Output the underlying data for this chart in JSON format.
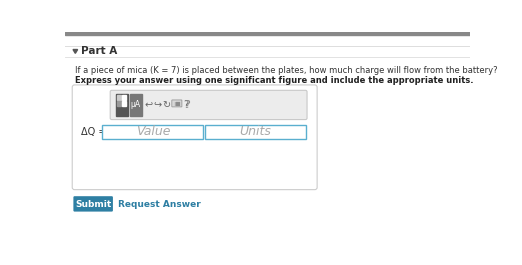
{
  "bg_top_bar": "#888888",
  "bg_white": "#ffffff",
  "bg_light": "#f0f0f0",
  "separator_color": "#dddddd",
  "part_a_label": "Part A",
  "question": "If a piece of mica (K = 7) is placed between the plates, how much charge will flow from the battery?",
  "bold_text": "Express your answer using one significant figure and include the appropriate units.",
  "input_label": "ΔQ =",
  "value_placeholder": "Value",
  "units_placeholder": "Units",
  "submit_label": "Submit",
  "request_label": "Request Answer",
  "submit_color": "#2e7fa3",
  "toolbar_bg": "#ececec",
  "toolbar_border": "#c8c8c8",
  "input_box_border": "#5aafcf",
  "input_box_bg": "#ffffff",
  "outer_box_border": "#cccccc",
  "outer_box_bg": "#ffffff",
  "triangle_color": "#555555",
  "icon_dark": "#666666",
  "icon_darker": "#555555",
  "ua_bg": "#777777",
  "question_color": "#333333",
  "bold_color": "#222222",
  "placeholder_color": "#aaaaaa",
  "link_color": "#2e7fa3"
}
